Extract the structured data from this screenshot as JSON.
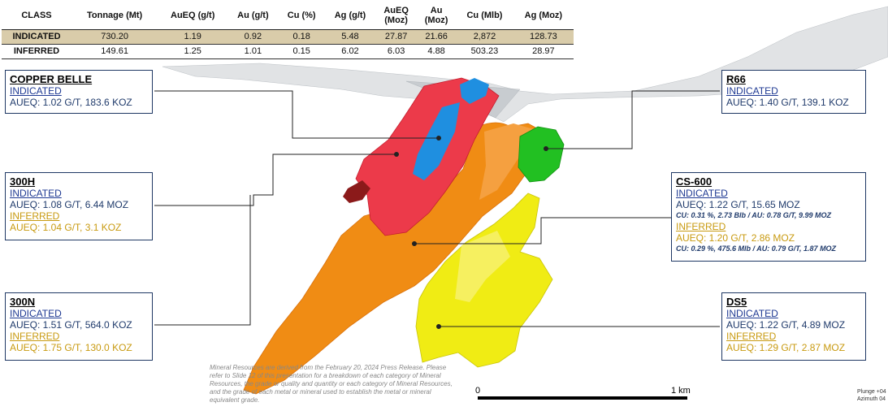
{
  "table": {
    "headers": [
      "CLASS",
      "Tonnage (Mt)",
      "AuEQ (g/t)",
      "Au (g/t)",
      "Cu (%)",
      "Ag (g/t)",
      "AuEQ\n(Moz)",
      "Au\n(Moz)",
      "Cu (Mlb)",
      "Ag (Moz)"
    ],
    "rows": [
      [
        "INDICATED",
        "730.20",
        "1.19",
        "0.92",
        "0.18",
        "5.48",
        "27.87",
        "21.66",
        "2,872",
        "128.73"
      ],
      [
        "INFERRED",
        "149.61",
        "1.25",
        "1.01",
        "0.15",
        "6.02",
        "6.03",
        "4.88",
        "503.23",
        "28.97"
      ]
    ]
  },
  "deposits": {
    "copper_belle": {
      "title": "COPPER BELLE",
      "ind_label": "INDICATED",
      "ind_value": "AUEQ: 1.02 G/T, 183.6 KOZ"
    },
    "h300": {
      "title": "300H",
      "ind_label": "INDICATED",
      "ind_value": "AUEQ: 1.08 G/T, 6.44 MOZ",
      "inf_label": "INFERRED",
      "inf_value": "AUEQ: 1.04 G/T, 3.1 KOZ"
    },
    "n300": {
      "title": "300N",
      "ind_label": "INDICATED",
      "ind_value": "AUEQ: 1.51 G/T, 564.0 KOZ",
      "inf_label": "INFERRED",
      "inf_value": "AUEQ: 1.75 G/T, 130.0 KOZ"
    },
    "r66": {
      "title": "R66",
      "ind_label": "INDICATED",
      "ind_value": "AUEQ: 1.40 G/T, 139.1 KOZ"
    },
    "cs600": {
      "title": "CS-600",
      "ind_label": "INDICATED",
      "ind_value": "AUEQ: 1.22 G/T, 15.65 MOZ",
      "ind_sub": "CU: 0.31 %, 2.73 Blb / AU: 0.78 G/T, 9.99 MOZ",
      "inf_label": "INFERRED",
      "inf_value": "AUEQ: 1.20 G/T, 2.86 MOZ",
      "inf_sub": "CU: 0.29 %, 475.6  Mlb / AU: 0.79 G/T, 1.87 MOZ"
    },
    "ds5": {
      "title": "DS5",
      "ind_label": "INDICATED",
      "ind_value": "AUEQ: 1.22 G/T, 4.89 MOZ",
      "inf_label": "INFERRED",
      "inf_value": "AUEQ: 1.29 G/T, 2.87 MOZ"
    }
  },
  "disclaimer": "Mineral Resources are derived from the February 20, 2024 Press Release. Please refer to Slide 12 of this presentation for a breakdown of each category of Mineral Resources, the grade or quality and quantity or each category of Mineral Resources, and the grade of each metal or mineral used to establish the metal or mineral equivalent grade.",
  "scale": {
    "start": "0",
    "end": "1 km"
  },
  "orientation": {
    "plunge": "Plunge +04",
    "azimuth": "Azimuth 04"
  },
  "colors": {
    "copper_belle": "#ec3a4a",
    "h300": "#ec3a4a",
    "h300_tail": "#8b1a1a",
    "blue_body": "#1f8fe0",
    "n300": "#f08c14",
    "r66": "#22c022",
    "ds5": "#f0ec14",
    "topography": "#c8ccd0",
    "box_border": "#1f3864",
    "indicated_row": "#d9ccaa"
  }
}
